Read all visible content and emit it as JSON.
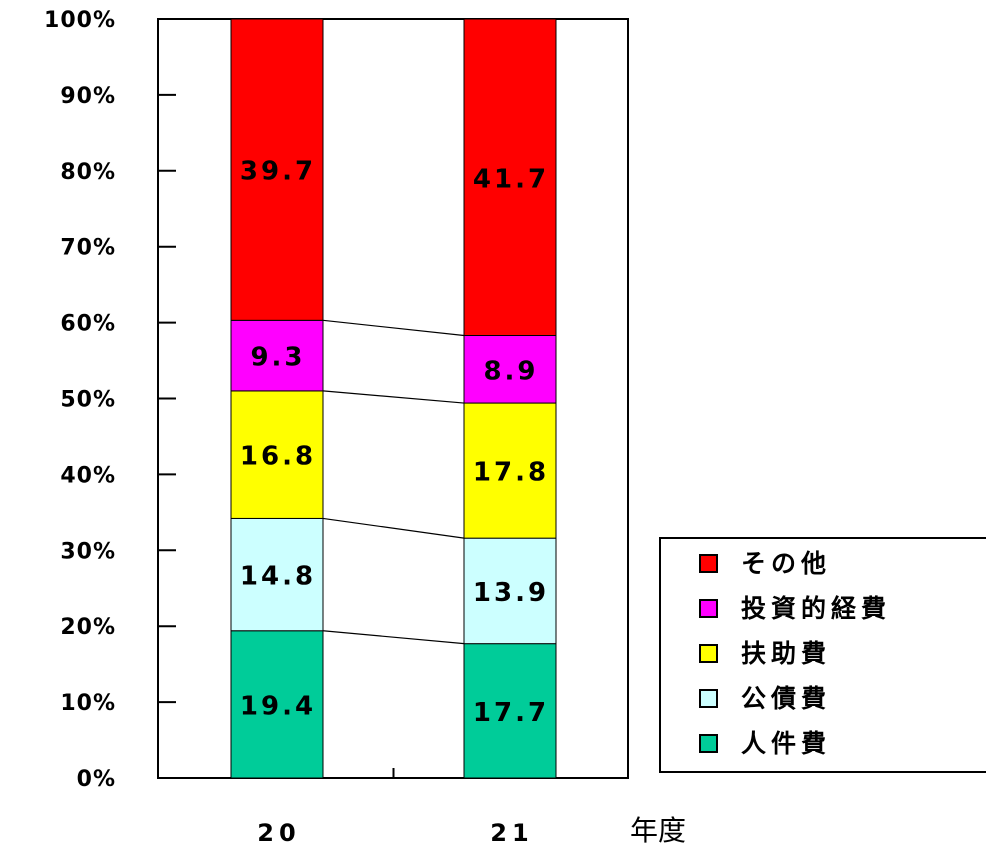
{
  "chart_data": {
    "type": "bar",
    "stacked": true,
    "percent_stacked": true,
    "categories": [
      "20",
      "21"
    ],
    "xlabel": "年度",
    "ylabel": "",
    "ylim": [
      0,
      100
    ],
    "y_ticks": [
      "0%",
      "10%",
      "20%",
      "30%",
      "40%",
      "50%",
      "60%",
      "70%",
      "80%",
      "90%",
      "100%"
    ],
    "series": [
      {
        "name": "人件費",
        "values": [
          19.4,
          17.7
        ],
        "labels": [
          "19.4",
          "17.7"
        ],
        "color": "#00CC99"
      },
      {
        "name": "公債費",
        "values": [
          14.8,
          13.9
        ],
        "labels": [
          "14.8",
          "13.9"
        ],
        "color": "#CCFFFF"
      },
      {
        "name": "扶助費",
        "values": [
          16.8,
          17.8
        ],
        "labels": [
          "16.8",
          "17.8"
        ],
        "color": "#FFFF00"
      },
      {
        "name": "投資的経費",
        "values": [
          9.3,
          8.9
        ],
        "labels": [
          "9.3",
          "8.9"
        ],
        "color": "#FF00FF"
      },
      {
        "name": "その他",
        "values": [
          39.7,
          41.7
        ],
        "labels": [
          "39.7",
          "41.7"
        ],
        "color": "#FF0000"
      }
    ],
    "legend_order": [
      "その他",
      "投資的経費",
      "扶助費",
      "公債費",
      "人件費"
    ],
    "legend_position": "bottom-right",
    "series_lines": true,
    "grid": false
  }
}
